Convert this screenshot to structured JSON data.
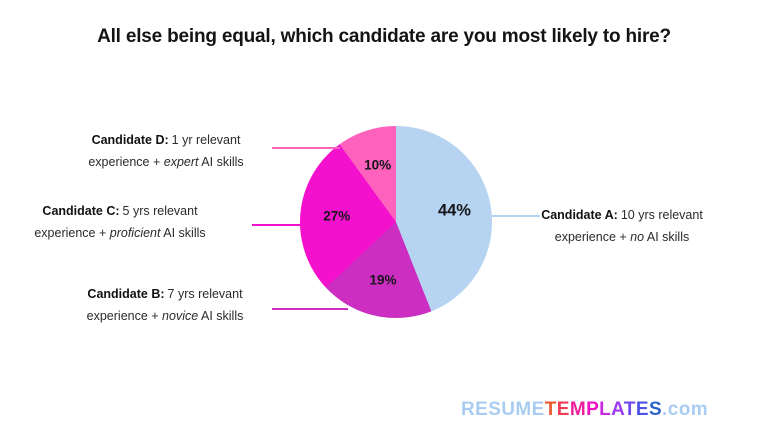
{
  "title": "All else being equal, which candidate are you most likely to hire?",
  "chart_data": {
    "type": "pie",
    "title": "All else being equal, which candidate are you most likely to hire?",
    "start_angle_deg": 0,
    "direction": "clockwise",
    "legend_position": "callout-labels",
    "slices": [
      {
        "name": "Candidate A",
        "description": "10 yrs relevant experience + no AI skills",
        "value": 44,
        "display": "44%",
        "color": "#b6d4f2"
      },
      {
        "name": "Candidate B",
        "description": "7 yrs relevant experience + novice AI skills",
        "value": 19,
        "display": "19%",
        "color": "#cb2ec1"
      },
      {
        "name": "Candidate C",
        "description": "5 yrs relevant experience + proficient AI skills",
        "value": 27,
        "display": "27%",
        "color": "#f411cd"
      },
      {
        "name": "Candidate D",
        "description": "1 yr relevant experience + expert AI skills",
        "value": 10,
        "display": "10%",
        "color": "#fe62bd"
      }
    ]
  },
  "labels": [
    {
      "bold": "Candidate A:",
      "line1_rest": "10 yrs relevant",
      "line2_pre": "experience + ",
      "italic": "no",
      "line2_post": " AI skills"
    },
    {
      "bold": "Candidate B:",
      "line1_rest": "7 yrs relevant",
      "line2_pre": "experience + ",
      "italic": "novice",
      "line2_post": " AI skills"
    },
    {
      "bold": "Candidate C:",
      "line1_rest": "5 yrs relevant",
      "line2_pre": "experience + ",
      "italic": "proficient",
      "line2_post": " AI skills"
    },
    {
      "bold": "Candidate D:",
      "line1_rest": "1 yr relevant",
      "line2_pre": "experience + ",
      "italic": "expert",
      "line2_post": " AI skills"
    }
  ],
  "logo": {
    "resume": "RESUME",
    "templates_letters": [
      {
        "ch": "T",
        "color": "#e65c2e"
      },
      {
        "ch": "E",
        "color": "#ee3e55"
      },
      {
        "ch": "M",
        "color": "#ee1f9e"
      },
      {
        "ch": "P",
        "color": "#ef10c3"
      },
      {
        "ch": "L",
        "color": "#c62bde"
      },
      {
        "ch": "A",
        "color": "#9c3bef"
      },
      {
        "ch": "T",
        "color": "#6f46f0"
      },
      {
        "ch": "E",
        "color": "#4a52e8"
      },
      {
        "ch": "S",
        "color": "#2e63c8"
      }
    ],
    "com": ".com",
    "light_blue": "#a9cdf1"
  }
}
